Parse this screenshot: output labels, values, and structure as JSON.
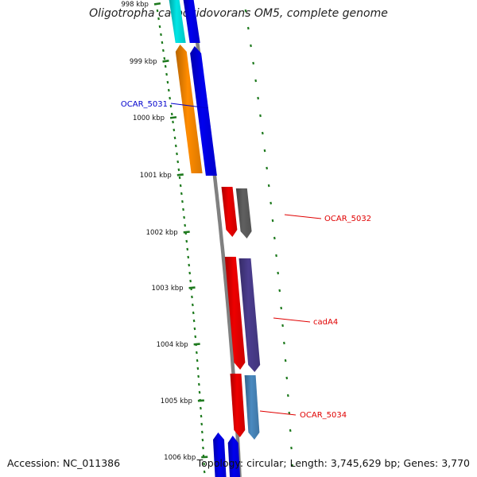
{
  "title": "Oligotropha carboxidovorans OM5, complete genome",
  "footer": {
    "accession": "Accession: NC_011386",
    "summary": "Topology: circular; Length: 3,745,629 bp; Genes: 3,770"
  },
  "colors": {
    "backbone": "#808080",
    "tick": "#1e7a1e",
    "forward_label": "#0000cc",
    "reverse_label": "#e00000"
  },
  "ticks": [
    {
      "label": "998 kbp"
    },
    {
      "label": "999 kbp"
    },
    {
      "label": "1000 kbp"
    },
    {
      "label": "1001 kbp"
    },
    {
      "label": "1002 kbp"
    },
    {
      "label": "1003 kbp"
    },
    {
      "label": "1004 kbp"
    },
    {
      "label": "1005 kbp"
    },
    {
      "label": "1006 kbp"
    }
  ],
  "genes": [
    {
      "id": "g1",
      "color": "#00e5e5",
      "strand": "forward"
    },
    {
      "id": "g2",
      "color": "#0000ee",
      "strand": "forward"
    },
    {
      "id": "g3",
      "color": "#ff8c00",
      "strand": "forward"
    },
    {
      "id": "g4",
      "color": "#0000ee",
      "strand": "forward"
    },
    {
      "id": "g5",
      "color": "#ee0000",
      "strand": "reverse"
    },
    {
      "id": "g6",
      "color": "#606060",
      "strand": "reverse"
    },
    {
      "id": "g7",
      "color": "#ee0000",
      "strand": "reverse"
    },
    {
      "id": "g8",
      "color": "#4b3d8f",
      "strand": "reverse"
    },
    {
      "id": "g9",
      "color": "#ee0000",
      "strand": "reverse"
    },
    {
      "id": "g10",
      "color": "#4a8ac0",
      "strand": "reverse"
    },
    {
      "id": "g11",
      "color": "#0000ee",
      "strand": "forward"
    },
    {
      "id": "g12",
      "color": "#0000ee",
      "strand": "forward"
    }
  ],
  "gene_labels": [
    {
      "text": "OCAR_5031",
      "strand": "forward"
    },
    {
      "text": "OCAR_5032",
      "strand": "reverse"
    },
    {
      "text": "cadA4",
      "strand": "reverse"
    },
    {
      "text": "OCAR_5034",
      "strand": "reverse"
    }
  ]
}
